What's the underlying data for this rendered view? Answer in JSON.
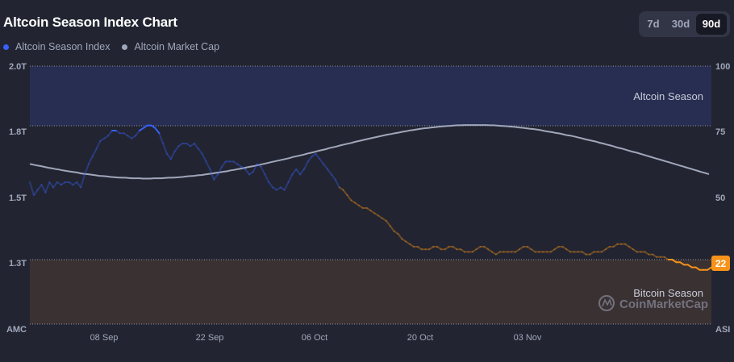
{
  "header": {
    "title": "Altcoin Season Index Chart",
    "ranges": [
      "7d",
      "30d",
      "90d"
    ],
    "active_range": "90d"
  },
  "legend": [
    {
      "label": "Altcoin Season Index",
      "color": "#3861fb"
    },
    {
      "label": "Altcoin Market Cap",
      "color": "#a1a7bb"
    }
  ],
  "chart_data": {
    "type": "line",
    "x_tick_labels": [
      "08 Sep",
      "22 Sep",
      "06 Oct",
      "20 Oct",
      "03 Nov"
    ],
    "left_axis": {
      "label": "AMC",
      "ticks": [
        "2.0T",
        "1.8T",
        "1.5T",
        "1.3T"
      ],
      "ylim": [
        1.05,
        2.0
      ]
    },
    "right_axis": {
      "label": "ASI",
      "ticks": [
        "100",
        "75",
        "50",
        ""
      ],
      "ylim": [
        0,
        100
      ]
    },
    "zones": [
      {
        "label": "Altcoin Season",
        "from": 75,
        "to": 100,
        "color": "#282e51"
      },
      {
        "label": "Bitcoin Season",
        "from": 0,
        "to": 25,
        "color": "#3a3133"
      }
    ],
    "current_value_badge": "22",
    "watermark": "CoinMarketCap",
    "series": [
      {
        "name": "Altcoin Season Index",
        "axis": "right",
        "values": [
          55,
          50,
          52,
          54,
          51,
          55,
          53,
          55,
          54,
          55,
          55,
          54,
          55,
          53,
          58,
          62,
          65,
          68,
          71,
          72,
          73,
          75,
          75,
          74,
          74,
          73,
          72,
          73,
          75,
          76,
          77,
          77,
          76,
          74,
          70,
          66,
          64,
          67,
          69,
          70,
          70,
          69,
          70,
          68,
          66,
          63,
          60,
          56,
          58,
          61,
          63,
          63,
          63,
          62,
          61,
          60,
          58,
          59,
          62,
          61,
          58,
          55,
          53,
          52,
          53,
          52,
          55,
          58,
          60,
          58,
          60,
          63,
          65,
          66,
          64,
          62,
          60,
          58,
          56,
          53,
          52,
          50,
          48,
          47,
          46,
          45,
          45,
          44,
          43,
          42,
          41,
          40,
          38,
          36,
          35,
          33,
          32,
          31,
          30,
          30,
          29,
          29,
          29,
          30,
          30,
          29,
          29,
          30,
          30,
          29,
          29,
          28,
          28,
          28,
          29,
          30,
          30,
          29,
          28,
          27,
          28,
          28,
          28,
          28,
          28,
          29,
          30,
          30,
          29,
          28,
          28,
          28,
          28,
          28,
          29,
          30,
          30,
          29,
          28,
          28,
          28,
          28,
          27,
          27,
          28,
          28,
          28,
          29,
          30,
          30,
          31,
          31,
          31,
          30,
          29,
          28,
          28,
          28,
          27,
          27,
          26,
          26,
          26,
          25,
          25,
          24,
          24,
          23,
          23,
          22,
          22,
          21,
          21,
          21,
          22
        ],
        "color_rule": ">=75 blue, <=25 orange, else faded"
      },
      {
        "name": "Altcoin Market Cap",
        "axis": "left",
        "values": [
          1.64,
          1.637,
          1.634,
          1.632,
          1.629,
          1.626,
          1.624,
          1.621,
          1.619,
          1.616,
          1.614,
          1.612,
          1.61,
          1.608,
          1.605,
          1.603,
          1.602,
          1.6,
          1.598,
          1.596,
          1.595,
          1.594,
          1.592,
          1.591,
          1.59,
          1.589,
          1.589,
          1.588,
          1.587,
          1.587,
          1.587,
          1.586,
          1.586,
          1.586,
          1.587,
          1.587,
          1.587,
          1.588,
          1.589,
          1.589,
          1.59,
          1.591,
          1.592,
          1.594,
          1.595,
          1.596,
          1.598,
          1.599,
          1.601,
          1.603,
          1.605,
          1.607,
          1.609,
          1.611,
          1.613,
          1.616,
          1.618,
          1.621,
          1.623,
          1.626,
          1.629,
          1.631,
          1.634,
          1.637,
          1.64,
          1.643,
          1.646,
          1.649,
          1.652,
          1.655,
          1.658,
          1.661,
          1.665,
          1.668,
          1.671,
          1.674,
          1.678,
          1.681,
          1.684,
          1.688,
          1.691,
          1.694,
          1.698,
          1.701,
          1.704,
          1.708,
          1.711,
          1.714,
          1.717,
          1.721,
          1.724,
          1.727,
          1.73,
          1.733,
          1.736,
          1.739,
          1.742,
          1.745,
          1.748,
          1.75,
          1.753,
          1.755,
          1.758,
          1.76,
          1.763,
          1.765,
          1.767,
          1.769,
          1.771,
          1.772,
          1.774,
          1.775,
          1.777,
          1.778,
          1.779,
          1.78,
          1.781,
          1.782,
          1.782,
          1.783,
          1.783,
          1.783,
          1.783,
          1.783,
          1.783,
          1.783,
          1.782,
          1.782,
          1.781,
          1.78,
          1.779,
          1.778,
          1.777,
          1.776,
          1.774,
          1.773,
          1.771,
          1.769,
          1.768,
          1.766,
          1.764,
          1.761,
          1.759,
          1.757,
          1.754,
          1.752,
          1.749,
          1.746,
          1.744,
          1.741,
          1.738,
          1.735,
          1.731,
          1.728,
          1.725,
          1.722,
          1.718,
          1.715,
          1.711,
          1.708,
          1.704,
          1.7,
          1.697,
          1.693,
          1.689,
          1.685,
          1.682,
          1.678,
          1.674,
          1.67,
          1.666,
          1.662,
          1.658,
          1.654,
          1.65,
          1.646,
          1.642,
          1.638,
          1.634,
          1.63,
          1.626,
          1.622,
          1.618,
          1.614,
          1.61,
          1.606,
          1.602
        ]
      }
    ]
  }
}
